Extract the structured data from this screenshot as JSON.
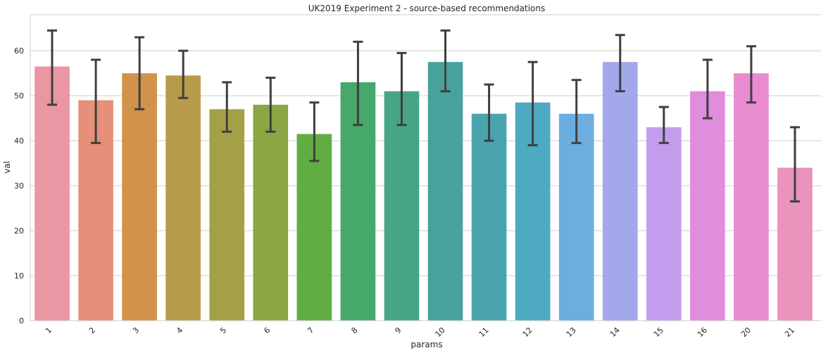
{
  "chart_data": {
    "type": "bar",
    "title": "UK2019 Experiment 2 - source-based recommendations",
    "xlabel": "params",
    "ylabel": "val",
    "ylim": [
      0,
      68
    ],
    "yticks": [
      0,
      10,
      20,
      30,
      40,
      50,
      60
    ],
    "grid": "horizontal",
    "categories": [
      "1",
      "2",
      "3",
      "4",
      "5",
      "6",
      "7",
      "8",
      "9",
      "10",
      "11",
      "12",
      "13",
      "14",
      "15",
      "16",
      "20",
      "21"
    ],
    "values": [
      56.5,
      49,
      55,
      54.5,
      47,
      48,
      41.5,
      53,
      51,
      57.5,
      46,
      48.5,
      46,
      57.5,
      43,
      51,
      55,
      34
    ],
    "error_low": [
      48,
      39.5,
      47,
      49.5,
      42,
      42,
      35.5,
      43.5,
      43.5,
      51,
      40,
      39,
      39.5,
      51,
      39.5,
      45,
      48.5,
      26.5
    ],
    "error_high": [
      64.5,
      58,
      63,
      60,
      53,
      54,
      48.5,
      62,
      59.5,
      64.5,
      52.5,
      57.5,
      53.5,
      63.5,
      47.5,
      58,
      61,
      43
    ],
    "colors": [
      "#ea96a3",
      "#e69079",
      "#d1924a",
      "#b79b4a",
      "#a4a047",
      "#8ca644",
      "#61ad43",
      "#46a86b",
      "#48a487",
      "#48a29c",
      "#4aa4ad",
      "#4ea9c2",
      "#6baedf",
      "#a3a8ec",
      "#c49ced",
      "#df8ddd",
      "#e88ccf",
      "#e993bd"
    ]
  }
}
